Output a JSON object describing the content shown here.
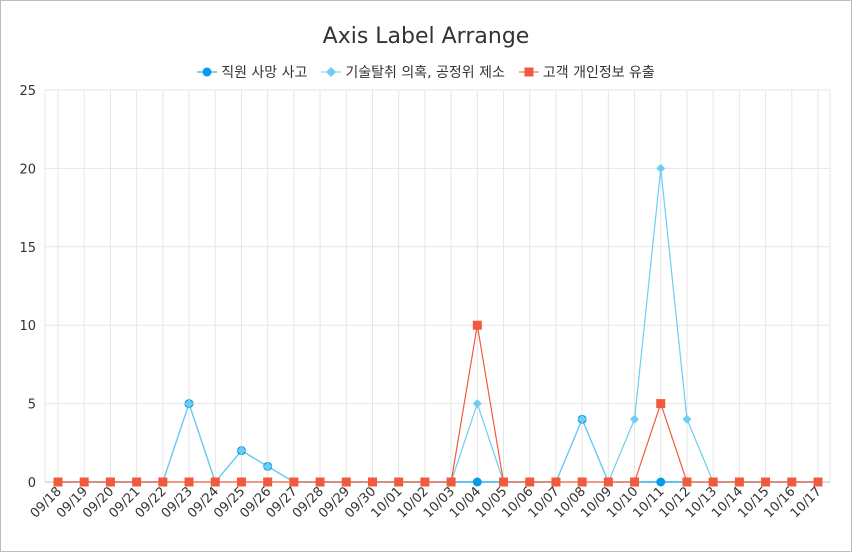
{
  "chart_data": {
    "type": "line",
    "title": "Axis Label Arrange",
    "xlabel": "",
    "ylabel": "",
    "ylim": [
      0,
      25
    ],
    "yticks": [
      0,
      5,
      10,
      15,
      20,
      25
    ],
    "grid": true,
    "legend_position": "top",
    "categories": [
      "09/18",
      "09/19",
      "09/20",
      "09/21",
      "09/22",
      "09/23",
      "09/24",
      "09/25",
      "09/26",
      "09/27",
      "09/28",
      "09/29",
      "09/30",
      "10/01",
      "10/02",
      "10/03",
      "10/04",
      "10/05",
      "10/06",
      "10/07",
      "10/08",
      "10/09",
      "10/10",
      "10/11",
      "10/12",
      "10/13",
      "10/14",
      "10/15",
      "10/16",
      "10/17"
    ],
    "series": [
      {
        "name": "직원 사망 사고",
        "color": "#0a9be8",
        "marker": "circle",
        "values": [
          0,
          0,
          0,
          0,
          0,
          5,
          0,
          2,
          1,
          0,
          0,
          0,
          0,
          0,
          0,
          0,
          0,
          0,
          0,
          0,
          4,
          0,
          0,
          0,
          0,
          0,
          0,
          0,
          0,
          0
        ]
      },
      {
        "name": "기술탈취 의혹, 공정위 제소",
        "color": "#6fcdf2",
        "marker": "diamond",
        "values": [
          0,
          0,
          0,
          0,
          0,
          5,
          0,
          2,
          1,
          0,
          0,
          0,
          0,
          0,
          0,
          0,
          5,
          0,
          0,
          0,
          4,
          0,
          4,
          20,
          4,
          0,
          0,
          0,
          0,
          0
        ]
      },
      {
        "name": "고객 개인정보 유출",
        "color": "#f25a3c",
        "marker": "square",
        "values": [
          0,
          0,
          0,
          0,
          0,
          0,
          0,
          0,
          0,
          0,
          0,
          0,
          0,
          0,
          0,
          0,
          10,
          0,
          0,
          0,
          0,
          0,
          0,
          5,
          0,
          0,
          0,
          0,
          0,
          0
        ]
      }
    ]
  }
}
